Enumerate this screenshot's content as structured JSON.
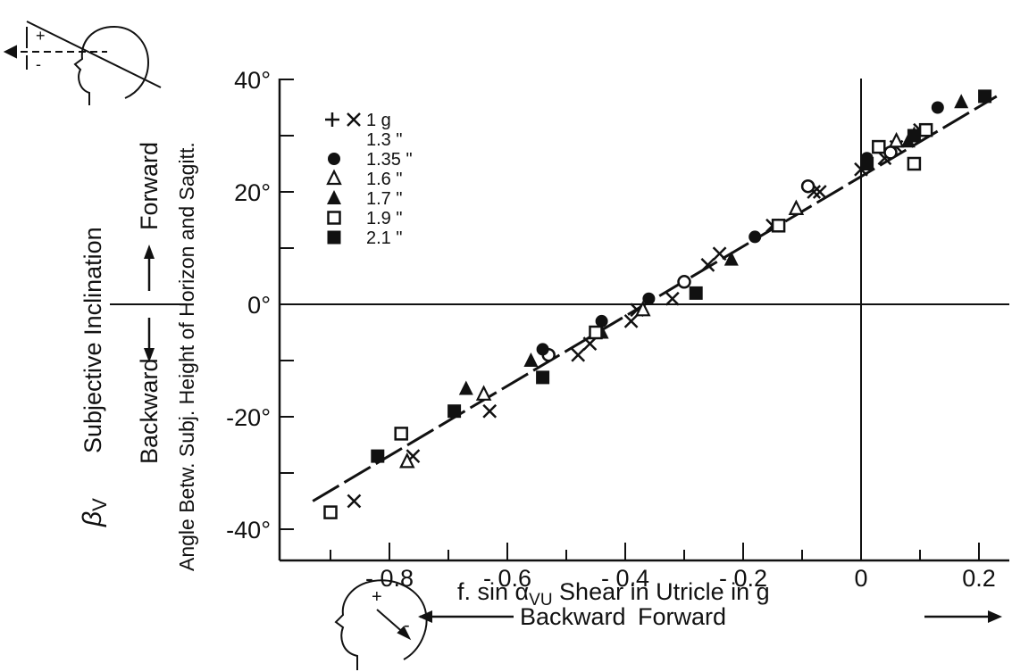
{
  "chart_data": {
    "type": "scatter",
    "xlabel": "f. sin α",
    "xlabel_sub": "VU",
    "xlabel_rest": " Shear in Utricle in g",
    "x_direction_back": "Backward",
    "x_direction_fwd": "Forward",
    "ylabel_symbol": "β",
    "ylabel_symbol_sub": "V",
    "ylabel_main": "Subjective   Inclination",
    "ylabel_back": "Backward",
    "ylabel_fwd": "Forward",
    "ylabel_secondary": "Angle Betw. Subj. Height of Horizon and Sagitt.",
    "xlim": [
      -0.93,
      0.23
    ],
    "ylim": [
      -45,
      43
    ],
    "x_ticks": [
      -0.8,
      -0.6,
      -0.4,
      -0.2,
      0,
      0.2
    ],
    "x_tick_labels": [
      "- 0.8",
      "- 0.6",
      "- 0.4",
      "- 0.2",
      "0",
      "0.2"
    ],
    "y_ticks": [
      -40,
      -20,
      0,
      20,
      40
    ],
    "y_tick_labels": [
      "-40°",
      "-20°",
      "0°",
      "20°",
      "40°"
    ],
    "fit_line": {
      "x": [
        -0.93,
        0.23
      ],
      "y": [
        -35,
        37
      ]
    },
    "series": [
      {
        "name": "1 g",
        "legend_label": "1  g",
        "marker": "plus-x",
        "points": [
          [
            -0.86,
            -35
          ],
          [
            -0.76,
            -27
          ],
          [
            -0.63,
            -19
          ],
          [
            -0.48,
            -9
          ],
          [
            -0.46,
            -7
          ],
          [
            -0.39,
            -3
          ],
          [
            -0.38,
            -1
          ],
          [
            -0.32,
            1
          ],
          [
            -0.26,
            7
          ],
          [
            -0.24,
            9
          ],
          [
            -0.15,
            14
          ],
          [
            -0.08,
            20
          ],
          [
            -0.07,
            20
          ],
          [
            0,
            24
          ],
          [
            0.04,
            26
          ],
          [
            0.06,
            28
          ],
          [
            0.1,
            31
          ]
        ]
      },
      {
        "name": "1.3",
        "legend_label": "1.3  \"",
        "marker": "open-circle",
        "points": [
          [
            -0.53,
            -9
          ],
          [
            -0.3,
            4
          ],
          [
            -0.09,
            21
          ],
          [
            0.05,
            27
          ]
        ]
      },
      {
        "name": "1.35",
        "legend_label": "1.35  \"",
        "marker": "filled-circle",
        "points": [
          [
            -0.54,
            -8
          ],
          [
            -0.44,
            -3
          ],
          [
            -0.36,
            1
          ],
          [
            -0.18,
            12
          ],
          [
            0.01,
            26
          ],
          [
            0.13,
            35
          ]
        ]
      },
      {
        "name": "1.6",
        "legend_label": "1.6  \"",
        "marker": "open-triangle",
        "points": [
          [
            -0.77,
            -28
          ],
          [
            -0.64,
            -16
          ],
          [
            -0.37,
            -1
          ],
          [
            -0.11,
            17
          ],
          [
            0.06,
            29
          ],
          [
            0.09,
            30
          ]
        ]
      },
      {
        "name": "1.7",
        "legend_label": "1.7  \"",
        "marker": "filled-triangle",
        "points": [
          [
            -0.67,
            -15
          ],
          [
            -0.56,
            -10
          ],
          [
            -0.44,
            -5
          ],
          [
            -0.22,
            8
          ],
          [
            0.08,
            29
          ],
          [
            0.17,
            36
          ]
        ]
      },
      {
        "name": "1.9",
        "legend_label": "1.9  \"",
        "marker": "open-square",
        "points": [
          [
            -0.9,
            -37
          ],
          [
            -0.78,
            -23
          ],
          [
            -0.45,
            -5
          ],
          [
            -0.14,
            14
          ],
          [
            0.03,
            28
          ],
          [
            0.09,
            25
          ],
          [
            0.11,
            31
          ]
        ]
      },
      {
        "name": "2.1",
        "legend_label": "2.1  \"",
        "marker": "filled-square",
        "points": [
          [
            -0.82,
            -27
          ],
          [
            -0.69,
            -19
          ],
          [
            -0.54,
            -13
          ],
          [
            -0.28,
            2
          ],
          [
            0.01,
            25
          ],
          [
            0.09,
            30
          ],
          [
            0.21,
            37
          ]
        ]
      }
    ]
  }
}
